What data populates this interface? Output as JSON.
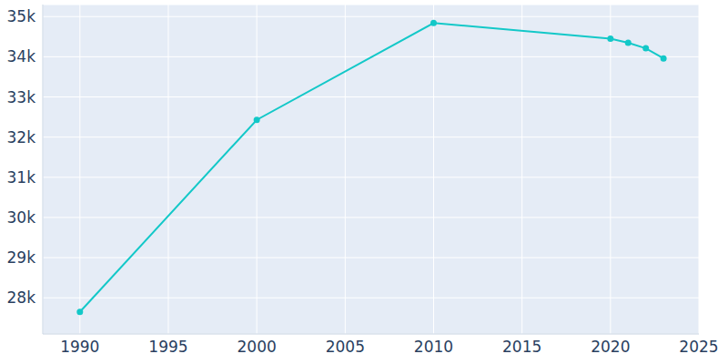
{
  "chart_data": {
    "type": "line",
    "x": [
      1990,
      2000,
      2010,
      2020,
      2021,
      2022,
      2023
    ],
    "values": [
      27650,
      32430,
      34840,
      34450,
      34350,
      34210,
      33960
    ],
    "color": "#13c8c8",
    "marker": "circle",
    "xlim": [
      1987.9,
      2025
    ],
    "xticks": [
      1990,
      1995,
      2000,
      2005,
      2010,
      2015,
      2020,
      2025
    ],
    "ylim": [
      27100,
      35300
    ],
    "yticks": [
      {
        "value": 28000,
        "label": "28k"
      },
      {
        "value": 29000,
        "label": "29k"
      },
      {
        "value": 30000,
        "label": "30k"
      },
      {
        "value": 31000,
        "label": "31k"
      },
      {
        "value": 32000,
        "label": "32k"
      },
      {
        "value": 33000,
        "label": "33k"
      },
      {
        "value": 34000,
        "label": "34k"
      },
      {
        "value": 35000,
        "label": "35k"
      }
    ],
    "grid": true
  }
}
